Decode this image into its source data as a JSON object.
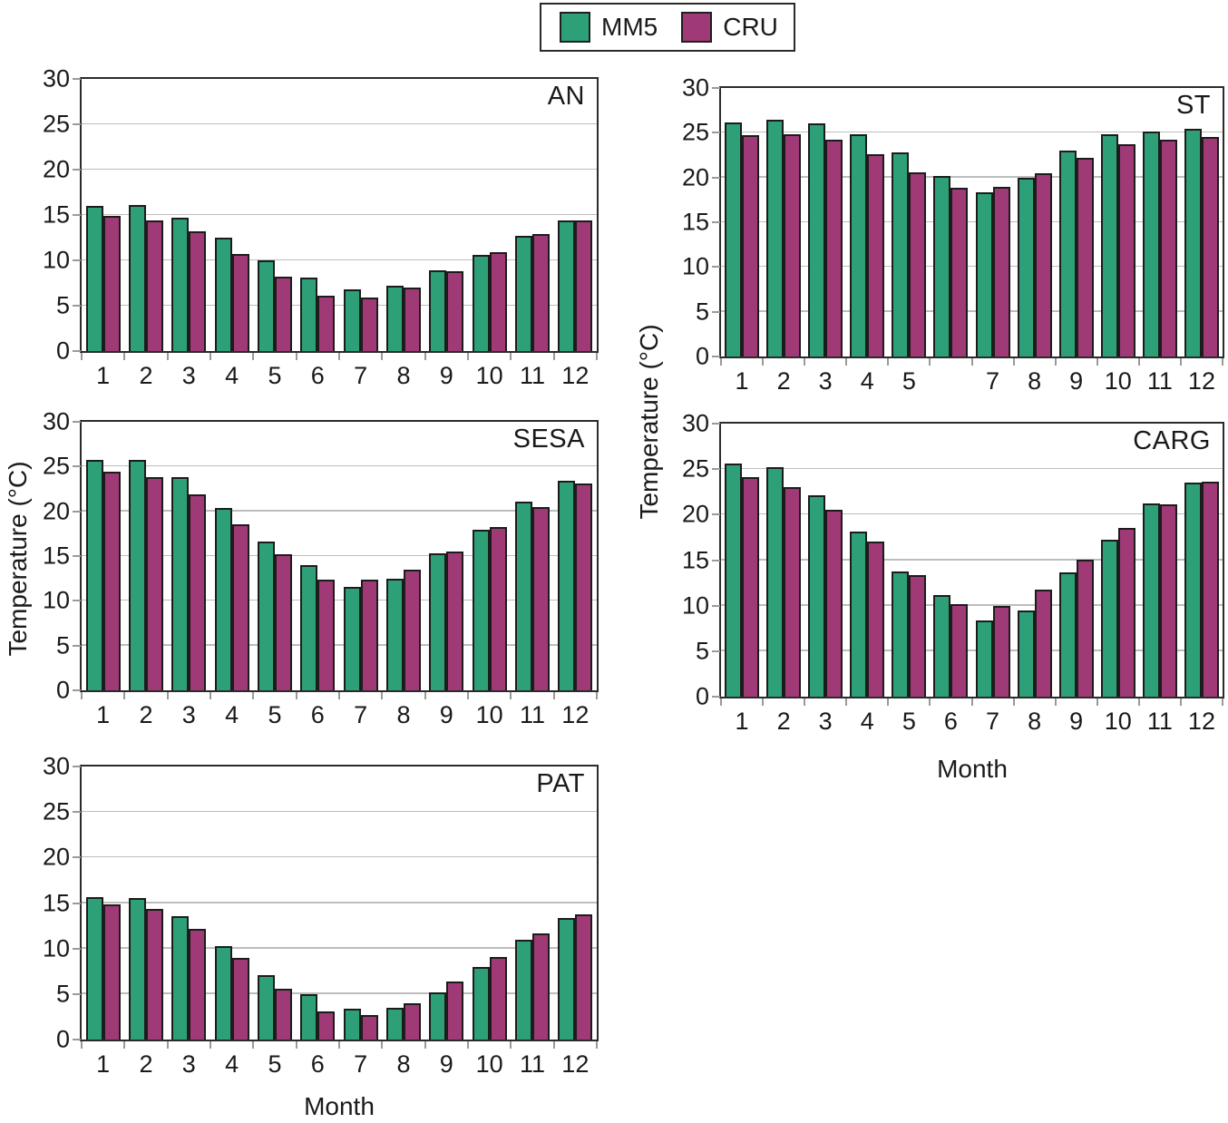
{
  "figure": {
    "legend": {
      "items": [
        {
          "label": "MM5",
          "color": "#2ea077"
        },
        {
          "label": "CRU",
          "color": "#a03a76"
        }
      ]
    },
    "axes": {
      "y_title": "Temperature (°C)",
      "x_title": "Month",
      "y_ticks": [
        0,
        5,
        10,
        15,
        20,
        25,
        30
      ],
      "ylim": [
        0,
        30
      ]
    }
  },
  "chart_data": [
    {
      "id": "an",
      "type": "bar",
      "title": "AN",
      "x_labels": [
        "1",
        "2",
        "3",
        "4",
        "5",
        "6",
        "7",
        "8",
        "9",
        "10",
        "11",
        "12"
      ],
      "ylim": [
        0,
        30
      ],
      "grid": true,
      "legend_position": "shared-top-center",
      "series": [
        {
          "name": "MM5",
          "color": "#2ea077",
          "values": [
            16.0,
            16.1,
            14.7,
            12.5,
            10.0,
            8.1,
            6.8,
            7.2,
            8.9,
            10.6,
            12.7,
            14.4
          ]
        },
        {
          "name": "CRU",
          "color": "#a03a76",
          "values": [
            14.9,
            14.4,
            13.2,
            10.7,
            8.2,
            6.1,
            5.9,
            7.0,
            8.8,
            10.9,
            12.9,
            14.4
          ]
        }
      ]
    },
    {
      "id": "st",
      "type": "bar",
      "title": "ST",
      "x_labels": [
        "1",
        "2",
        "3",
        "4",
        "5",
        "",
        "7",
        "8",
        "9",
        "10",
        "11",
        "12"
      ],
      "ylim": [
        0,
        30
      ],
      "grid": true,
      "legend_position": "shared-top-center",
      "series": [
        {
          "name": "MM5",
          "color": "#2ea077",
          "values": [
            26.1,
            26.5,
            26.0,
            24.8,
            22.8,
            20.2,
            18.3,
            20.0,
            23.0,
            24.8,
            25.1,
            25.4
          ]
        },
        {
          "name": "CRU",
          "color": "#a03a76",
          "values": [
            24.7,
            24.8,
            24.2,
            22.6,
            20.6,
            18.9,
            19.0,
            20.5,
            22.2,
            23.7,
            24.2,
            24.5
          ]
        }
      ]
    },
    {
      "id": "sesa",
      "type": "bar",
      "title": "SESA",
      "x_labels": [
        "1",
        "2",
        "3",
        "4",
        "5",
        "6",
        "7",
        "8",
        "9",
        "10",
        "11",
        "12"
      ],
      "ylim": [
        0,
        30
      ],
      "grid": true,
      "legend_position": "shared-top-center",
      "series": [
        {
          "name": "MM5",
          "color": "#2ea077",
          "values": [
            25.7,
            25.7,
            23.8,
            20.4,
            16.6,
            14.0,
            11.6,
            12.5,
            15.3,
            17.9,
            21.1,
            23.4
          ]
        },
        {
          "name": "CRU",
          "color": "#a03a76",
          "values": [
            24.4,
            23.8,
            21.9,
            18.5,
            15.2,
            12.4,
            12.4,
            13.5,
            15.5,
            18.2,
            20.5,
            23.1
          ]
        }
      ]
    },
    {
      "id": "carg",
      "type": "bar",
      "title": "CARG",
      "x_labels": [
        "1",
        "2",
        "3",
        "4",
        "5",
        "6",
        "7",
        "8",
        "9",
        "10",
        "11",
        "12"
      ],
      "ylim": [
        0,
        30
      ],
      "grid": true,
      "legend_position": "shared-top-center",
      "series": [
        {
          "name": "MM5",
          "color": "#2ea077",
          "values": [
            25.6,
            25.2,
            22.1,
            18.1,
            13.8,
            11.2,
            8.4,
            9.5,
            13.7,
            17.2,
            21.2,
            23.5
          ]
        },
        {
          "name": "CRU",
          "color": "#a03a76",
          "values": [
            24.1,
            23.0,
            20.5,
            17.0,
            13.4,
            10.2,
            10.0,
            11.8,
            15.1,
            18.5,
            21.1,
            23.6
          ]
        }
      ]
    },
    {
      "id": "pat",
      "type": "bar",
      "title": "PAT",
      "x_labels": [
        "1",
        "2",
        "3",
        "4",
        "5",
        "6",
        "7",
        "8",
        "9",
        "10",
        "11",
        "12"
      ],
      "ylim": [
        0,
        30
      ],
      "grid": true,
      "legend_position": "shared-top-center",
      "series": [
        {
          "name": "MM5",
          "color": "#2ea077",
          "values": [
            15.6,
            15.5,
            13.6,
            10.3,
            7.1,
            5.0,
            3.4,
            3.5,
            5.2,
            8.0,
            11.0,
            13.4
          ]
        },
        {
          "name": "CRU",
          "color": "#a03a76",
          "values": [
            14.9,
            14.4,
            12.2,
            9.0,
            5.6,
            3.1,
            2.7,
            4.0,
            6.4,
            9.1,
            11.7,
            13.8
          ]
        }
      ]
    }
  ]
}
